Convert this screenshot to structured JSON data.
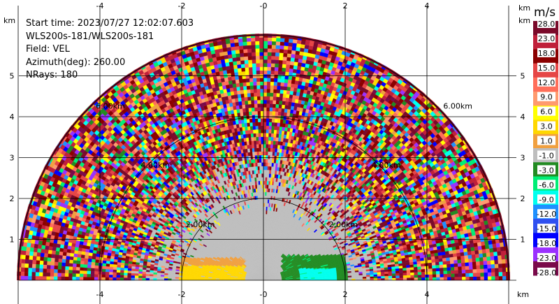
{
  "info": {
    "start_time": "Start time: 2023/07/27 12:02:07.603",
    "instrument": "WLS200s-181/WLS200s-181",
    "field": "Field: VEL",
    "azimuth": "Azimuth(deg): 260.00",
    "nrays": "NRays: 180"
  },
  "chart_data": {
    "type": "heatmap",
    "projection": "polar RHI half-disc",
    "x_unit": "km",
    "y_unit": "km",
    "x_ticks": [
      "-4",
      "-2",
      "-0",
      "2",
      "4"
    ],
    "y_ticks": [
      "1",
      "2",
      "3",
      "4",
      "5"
    ],
    "xlim": [
      -6.0,
      6.0
    ],
    "ylim": [
      0,
      6.0
    ],
    "range_rings_km": [
      2,
      4,
      6
    ],
    "ring_labels": [
      "2.00km",
      "2.00km",
      "4.00km",
      "4.00km",
      "6.00km",
      "6.00km"
    ],
    "colorbar": {
      "unit": "m/s",
      "labels": [
        "28.0",
        "23.0",
        "18.0",
        "15.0",
        "12.0",
        "9.0",
        "6.0",
        "3.0",
        "1.0",
        "-1.0",
        "-3.0",
        "-6.0",
        "-9.0",
        "-12.0",
        "-15.0",
        "-18.0",
        "-23.0",
        "-28.0"
      ],
      "colors": [
        "#7a0a2a",
        "#c0203a",
        "#8b0000",
        "#e64646",
        "#ff6e5a",
        "#ff9a6e",
        "#ffff00",
        "#ffd700",
        "#f0a040",
        "#bebebe",
        "#228b22",
        "#00ee76",
        "#00ffee",
        "#1e90ff",
        "#3050f0",
        "#0000ff",
        "#9b30ff",
        "#7a0a4a"
      ]
    },
    "features": [
      {
        "name": "receding",
        "velocity_range": [
          3,
          9
        ],
        "x_km": [
          -2.0,
          -0.5
        ],
        "y_km": [
          0,
          0.55
        ]
      },
      {
        "name": "approaching",
        "velocity_range": [
          -9,
          -3
        ],
        "x_km": [
          0.5,
          2.0
        ],
        "y_km": [
          0,
          0.6
        ]
      },
      {
        "name": "near-zero",
        "velocity_range": [
          -1,
          1
        ],
        "x_km": [
          -2.2,
          2.2
        ],
        "y_km": [
          0.5,
          3.0
        ]
      }
    ]
  }
}
